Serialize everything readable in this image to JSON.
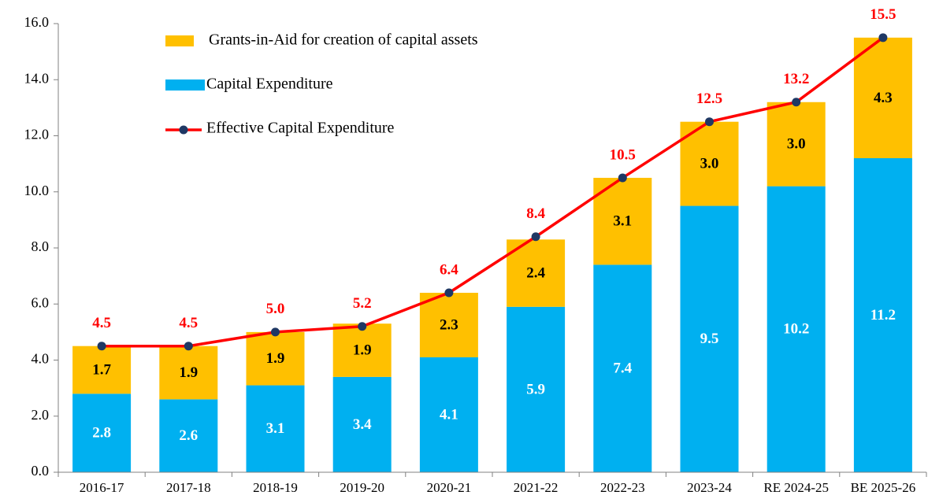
{
  "chart_data": {
    "type": "bar",
    "categories": [
      "2016-17",
      "2017-18",
      "2018-19",
      "2019-20",
      "2020-21",
      "2021-22",
      "2022-23",
      "2023-24",
      "RE 2024-25",
      "BE 2025-26"
    ],
    "stacked": true,
    "legend": "upper left",
    "ylim": [
      0,
      16
    ],
    "yticks": [
      {
        "value": 0,
        "label": "0.0"
      },
      {
        "value": 2,
        "label": "2.0"
      },
      {
        "value": 4,
        "label": "4.0"
      },
      {
        "value": 6,
        "label": "6.0"
      },
      {
        "value": 8,
        "label": "8.0"
      },
      {
        "value": 10,
        "label": "10.0"
      },
      {
        "value": 12,
        "label": "12.0"
      },
      {
        "value": 14,
        "label": "14.0"
      },
      {
        "value": 16,
        "label": "16.0"
      }
    ],
    "series": [
      {
        "name": "Capital Expenditure",
        "type": "bar",
        "color": "#00b0f0",
        "values": [
          2.8,
          2.6,
          3.1,
          3.4,
          4.1,
          5.9,
          7.4,
          9.5,
          10.2,
          11.2
        ],
        "value_labels": [
          "2.8",
          "2.6",
          "3.1",
          "3.4",
          "4.1",
          "5.9",
          "7.4",
          "9.5",
          "10.2",
          "11.2"
        ]
      },
      {
        "name": "Grants-in-Aid for creation of capital assets",
        "type": "bar",
        "color": "#ffc000",
        "values": [
          1.7,
          1.9,
          1.9,
          1.9,
          2.3,
          2.4,
          3.1,
          3.0,
          3.0,
          4.3
        ],
        "value_labels": [
          "1.7",
          "1.9",
          "1.9",
          "1.9",
          "2.3",
          "2.4",
          "3.1",
          "3.0",
          "3.0",
          "4.3"
        ]
      },
      {
        "name": "Effective Capital Expenditure",
        "type": "line",
        "color": "#ff0000",
        "marker_color": "#1f3864",
        "values": [
          4.5,
          4.5,
          5.0,
          5.2,
          6.4,
          8.4,
          10.5,
          12.5,
          13.2,
          15.5
        ],
        "value_labels": [
          "4.5",
          "4.5",
          "5.0",
          "5.2",
          "6.4",
          "8.4",
          "10.5",
          "12.5",
          "13.2",
          "15.5"
        ]
      }
    ]
  }
}
